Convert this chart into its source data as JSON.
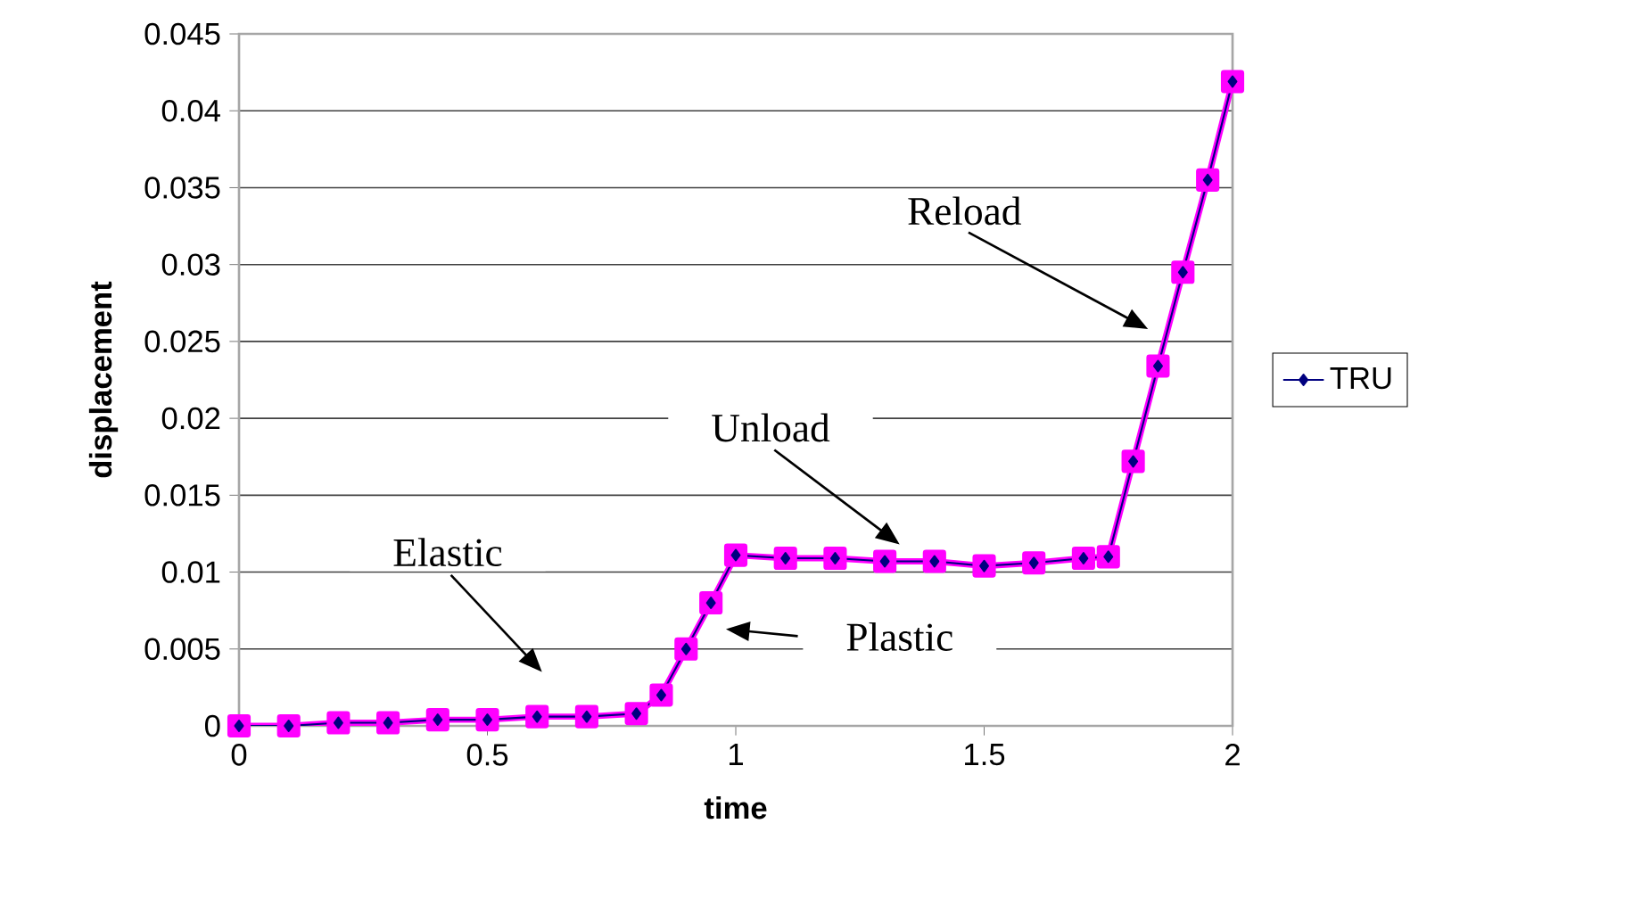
{
  "chart_data": {
    "type": "line",
    "xlabel": "time",
    "ylabel": "displacement",
    "x": [
      0,
      0.1,
      0.2,
      0.3,
      0.4,
      0.5,
      0.6,
      0.7,
      0.8,
      0.85,
      0.9,
      0.95,
      1.0,
      1.1,
      1.2,
      1.3,
      1.4,
      1.5,
      1.6,
      1.7,
      1.75,
      1.8,
      1.85,
      1.9,
      1.95,
      2.0
    ],
    "series": [
      {
        "name": "TRU",
        "color": "#000080",
        "marker": "diamond",
        "values": [
          0,
          0,
          0.0002,
          0.0002,
          0.0004,
          0.0004,
          0.0006,
          0.0006,
          0.0008,
          0.002,
          0.005,
          0.008,
          0.0111,
          0.0109,
          0.0109,
          0.0107,
          0.0107,
          0.0104,
          0.0106,
          0.0109,
          0.011,
          0.0172,
          0.0234,
          0.0295,
          0.0355,
          0.0419
        ]
      },
      {
        "color": "#ff00ff",
        "marker": "square",
        "values": [
          0,
          0,
          0.0002,
          0.0002,
          0.0004,
          0.0004,
          0.0006,
          0.0006,
          0.0008,
          0.002,
          0.005,
          0.008,
          0.0111,
          0.0109,
          0.0109,
          0.0107,
          0.0107,
          0.0104,
          0.0106,
          0.0109,
          0.011,
          0.0172,
          0.0234,
          0.0295,
          0.0355,
          0.0419
        ]
      }
    ],
    "xlim": [
      0,
      2
    ],
    "ylim": [
      0,
      0.045
    ],
    "xticks": [
      0,
      0.5,
      1,
      1.5,
      2
    ],
    "yticks": [
      0,
      0.005,
      0.01,
      0.015,
      0.02,
      0.025,
      0.03,
      0.035,
      0.04,
      0.045
    ],
    "grid": "y",
    "legend": "right",
    "line_style": "solid",
    "annotations": [
      "Elastic",
      "Plastic",
      "Unload",
      "Reload"
    ]
  }
}
